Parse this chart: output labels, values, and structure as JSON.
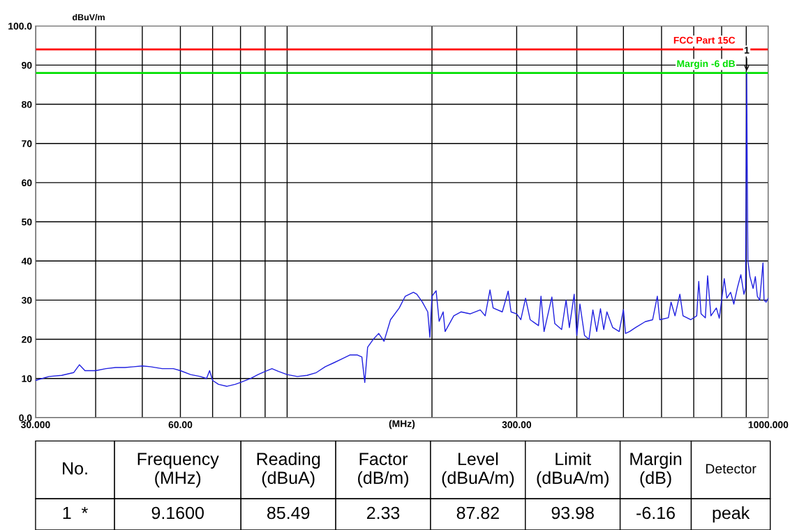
{
  "chart_data": {
    "type": "line",
    "ylabel": "dBuV/m",
    "xlabel": "(MHz)",
    "log": "x",
    "grid": true,
    "marker": "none",
    "line_style": "solid",
    "xlim": [
      30,
      1000
    ],
    "ylim": [
      0,
      100
    ],
    "xticks": [
      {
        "value": 30,
        "label": "30.000"
      },
      {
        "value": 40,
        "label": null
      },
      {
        "value": 50,
        "label": null
      },
      {
        "value": 60,
        "label": "60.00"
      },
      {
        "value": 70,
        "label": null
      },
      {
        "value": 80,
        "label": null
      },
      {
        "value": 90,
        "label": null
      },
      {
        "value": 100,
        "label": null
      },
      {
        "value": 200,
        "label": null
      },
      {
        "value": 300,
        "label": "300.00"
      },
      {
        "value": 400,
        "label": null
      },
      {
        "value": 500,
        "label": null
      },
      {
        "value": 600,
        "label": null
      },
      {
        "value": 700,
        "label": null
      },
      {
        "value": 800,
        "label": null
      },
      {
        "value": 900,
        "label": null
      },
      {
        "value": 1000,
        "label": "1000.000"
      }
    ],
    "yticks": [
      {
        "value": 0,
        "label": "0.0"
      },
      10,
      20,
      30,
      40,
      50,
      60,
      70,
      80,
      90,
      {
        "value": 100,
        "label": "100.0"
      }
    ],
    "series": [
      {
        "color": "#2020e0",
        "x": [
          30,
          32,
          34,
          36,
          37,
          38,
          40,
          42,
          44,
          46,
          48,
          50,
          52,
          55,
          58,
          60,
          63,
          66,
          68,
          69,
          70,
          72,
          75,
          78,
          80,
          84,
          87,
          90,
          93,
          96,
          100,
          105,
          110,
          115,
          120,
          125,
          130,
          135,
          140,
          143,
          145,
          147,
          151,
          155,
          159,
          164,
          171,
          176,
          183,
          186,
          191,
          196,
          198,
          200,
          204,
          207,
          211,
          213,
          222,
          230,
          240,
          252,
          258,
          264,
          268,
          280,
          288,
          292,
          300,
          306,
          313,
          320,
          333,
          337,
          342,
          355,
          360,
          372,
          380,
          386,
          395,
          400,
          406,
          415,
          424,
          432,
          440,
          448,
          455,
          462,
          475,
          490,
          500,
          505,
          515,
          530,
          555,
          575,
          588,
          595,
          620,
          628,
          640,
          655,
          665,
          690,
          710,
          717,
          725,
          740,
          748,
          760,
          780,
          791,
          800,
          810,
          820,
          835,
          848,
          862,
          877,
          890,
          897,
          902,
          904,
          907,
          916,
          930,
          940,
          949,
          960,
          975,
          980,
          990,
          1000
        ],
        "values": [
          9.5,
          10.5,
          10.8,
          11.5,
          13.5,
          12,
          12,
          12.5,
          12.8,
          12.8,
          13,
          13.2,
          13,
          12.5,
          12.5,
          12,
          11,
          10.5,
          10,
          12,
          9.5,
          8.5,
          8,
          8.5,
          9,
          10,
          11,
          11.8,
          12.5,
          11.8,
          11,
          10.5,
          10.8,
          11.5,
          13,
          14,
          15,
          16,
          16,
          15.5,
          9,
          18,
          20,
          21.5,
          19.5,
          25,
          28,
          31,
          32,
          31.5,
          29.5,
          27,
          20.5,
          31,
          32.4,
          24.6,
          27,
          22,
          26,
          27,
          26.5,
          27.5,
          26,
          32.6,
          28,
          27,
          32.3,
          27,
          26.5,
          25,
          30.5,
          25,
          23.5,
          31,
          22,
          30.8,
          24,
          22.5,
          30,
          23,
          31.5,
          21,
          29,
          21,
          20,
          27.5,
          22,
          27.8,
          22.5,
          27,
          23,
          22,
          27.6,
          21.5,
          22,
          23,
          24.5,
          25,
          31,
          25,
          25.5,
          29.5,
          26,
          31.5,
          26,
          25,
          26,
          34.8,
          26.5,
          25.5,
          36.2,
          26,
          28,
          25.4,
          30,
          35.5,
          30.5,
          32,
          29,
          33,
          36.5,
          31.5,
          33,
          88,
          64.7,
          40,
          36,
          33,
          36,
          31,
          30,
          39.5,
          30,
          29.5,
          30.5
        ]
      }
    ],
    "ref_lines": [
      {
        "axis": "y",
        "value": 94,
        "label": "FCC Part 15C",
        "color": "#ff0000"
      },
      {
        "axis": "y",
        "value": 88,
        "label": "Margin -6 dB",
        "color": "#00e000"
      }
    ],
    "annotations": [
      {
        "text": "1",
        "x": 902,
        "y": 88
      },
      "No.",
      "Frequency\n(MHz)",
      "Reading\n(dBuA)",
      "Factor\n(dB/m)",
      "Level\n(dBuA/m)",
      "Limit\n(dBuA/m)",
      "Margin\n(dB)",
      "Detector",
      "1  *",
      "9.1600",
      "85.49",
      "2.33",
      "87.82",
      "93.98",
      "-6.16",
      "peak"
    ]
  }
}
